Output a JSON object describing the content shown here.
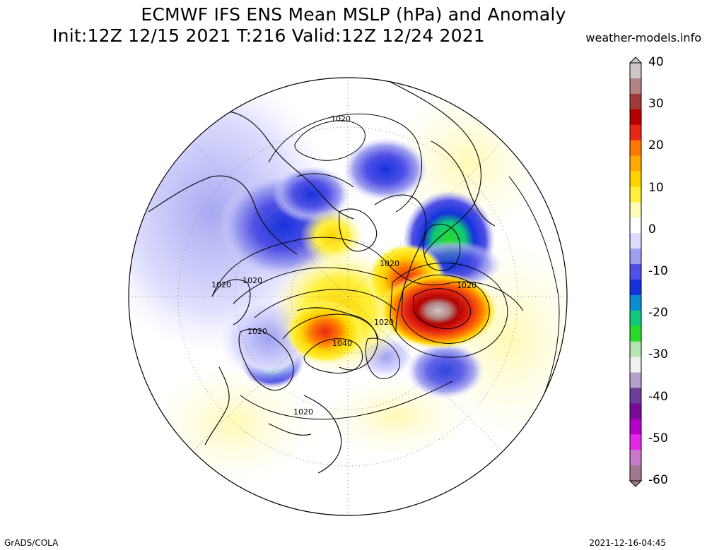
{
  "title_line1": "ECMWF IFS ENS Mean MSLP (hPa) and Anomaly",
  "title_line2": "Init:12Z 12/15 2021  T:216 Valid:12Z 12/24 2021",
  "credit": "weather-models.info",
  "footer_left": "GrADS/COLA",
  "footer_right": "2021-12-16-04:45",
  "colorbar": {
    "ticks": [
      "40",
      "30",
      "20",
      "10",
      "0",
      "-10",
      "-20",
      "-30",
      "-40",
      "-50",
      "-60"
    ],
    "colors": [
      "#cfc6c6",
      "#b48484",
      "#a03a3a",
      "#b40000",
      "#e62814",
      "#ff7800",
      "#ffaa00",
      "#ffd400",
      "#fff03c",
      "#fffab4",
      "#ffffff",
      "#dcdcff",
      "#a0a0f0",
      "#5050e6",
      "#1432dc",
      "#0a8cd2",
      "#10c878",
      "#28dc28",
      "#b4e6b4",
      "#f0f0f0",
      "#b4a0c8",
      "#6e3c9a",
      "#7a0a96",
      "#b400c8",
      "#e628e6",
      "#c878c8",
      "#a07890"
    ]
  },
  "contour_labels": [
    {
      "id": "cl-1",
      "text": "1020"
    },
    {
      "id": "cl-2",
      "text": "1020"
    },
    {
      "id": "cl-3",
      "text": "1020"
    },
    {
      "id": "cl-4",
      "text": "1020"
    },
    {
      "id": "cl-5",
      "text": "1020"
    },
    {
      "id": "cl-6",
      "text": "1020"
    },
    {
      "id": "cl-7",
      "text": "1020"
    },
    {
      "id": "cl-8",
      "text": "1040"
    },
    {
      "id": "cl-9",
      "text": "1020"
    },
    {
      "id": "cl-10",
      "text": "1020"
    }
  ]
}
